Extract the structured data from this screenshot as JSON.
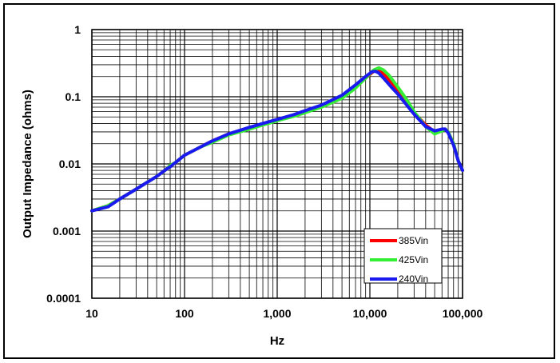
{
  "chart_data": {
    "type": "line",
    "title": "",
    "xlabel": "Hz",
    "ylabel": "Output Impedance (ohms)",
    "x_scale": "log",
    "y_scale": "log",
    "xlim": [
      10,
      100000
    ],
    "ylim": [
      0.0001,
      1
    ],
    "x_ticks": [
      {
        "value": 10,
        "label": "10"
      },
      {
        "value": 100,
        "label": "100"
      },
      {
        "value": 1000,
        "label": "1,000"
      },
      {
        "value": 10000,
        "label": "10,000"
      },
      {
        "value": 100000,
        "label": "100,000"
      }
    ],
    "y_ticks": [
      {
        "value": 1,
        "label": "1"
      },
      {
        "value": 0.1,
        "label": "0.1"
      },
      {
        "value": 0.01,
        "label": "0.01"
      },
      {
        "value": 0.001,
        "label": "0.001"
      },
      {
        "value": 0.0001,
        "label": "0.0001"
      }
    ],
    "grid": true,
    "legend_position": "bottom-right",
    "series": [
      {
        "name": "385Vin",
        "color": "#ff0000",
        "points": [
          [
            10,
            0.002
          ],
          [
            15,
            0.0024
          ],
          [
            20,
            0.003
          ],
          [
            30,
            0.0042
          ],
          [
            50,
            0.0065
          ],
          [
            65,
            0.0085
          ],
          [
            70,
            0.0095
          ],
          [
            80,
            0.0105
          ],
          [
            100,
            0.0135
          ],
          [
            150,
            0.018
          ],
          [
            200,
            0.022
          ],
          [
            300,
            0.028
          ],
          [
            500,
            0.034
          ],
          [
            700,
            0.039
          ],
          [
            1000,
            0.045
          ],
          [
            1500,
            0.053
          ],
          [
            2000,
            0.06
          ],
          [
            3000,
            0.073
          ],
          [
            5000,
            0.1
          ],
          [
            7000,
            0.14
          ],
          [
            9000,
            0.19
          ],
          [
            11000,
            0.24
          ],
          [
            12000,
            0.25
          ],
          [
            13000,
            0.24
          ],
          [
            15000,
            0.2
          ],
          [
            20000,
            0.12
          ],
          [
            25000,
            0.08
          ],
          [
            30000,
            0.058
          ],
          [
            40000,
            0.038
          ],
          [
            50000,
            0.03
          ],
          [
            60000,
            0.032
          ],
          [
            65000,
            0.033
          ],
          [
            70000,
            0.03
          ],
          [
            80000,
            0.02
          ],
          [
            90000,
            0.011
          ],
          [
            100000,
            0.008
          ]
        ]
      },
      {
        "name": "425Vin",
        "color": "#33ee33",
        "points": [
          [
            10,
            0.002
          ],
          [
            15,
            0.0024
          ],
          [
            20,
            0.003
          ],
          [
            30,
            0.0042
          ],
          [
            50,
            0.0065
          ],
          [
            65,
            0.0085
          ],
          [
            70,
            0.0095
          ],
          [
            80,
            0.0105
          ],
          [
            100,
            0.0135
          ],
          [
            150,
            0.018
          ],
          [
            200,
            0.021
          ],
          [
            300,
            0.027
          ],
          [
            500,
            0.033
          ],
          [
            700,
            0.038
          ],
          [
            1000,
            0.044
          ],
          [
            1500,
            0.051
          ],
          [
            2000,
            0.058
          ],
          [
            3000,
            0.07
          ],
          [
            5000,
            0.095
          ],
          [
            7000,
            0.135
          ],
          [
            9000,
            0.19
          ],
          [
            11000,
            0.25
          ],
          [
            12500,
            0.27
          ],
          [
            14000,
            0.25
          ],
          [
            16000,
            0.21
          ],
          [
            20000,
            0.14
          ],
          [
            25000,
            0.09
          ],
          [
            30000,
            0.06
          ],
          [
            40000,
            0.036
          ],
          [
            50000,
            0.028
          ],
          [
            60000,
            0.031
          ],
          [
            65000,
            0.033
          ],
          [
            70000,
            0.03
          ],
          [
            80000,
            0.02
          ],
          [
            90000,
            0.011
          ],
          [
            100000,
            0.008
          ]
        ]
      },
      {
        "name": "240Vin",
        "color": "#1a1aee",
        "points": [
          [
            10,
            0.002
          ],
          [
            15,
            0.0023
          ],
          [
            20,
            0.003
          ],
          [
            30,
            0.0042
          ],
          [
            50,
            0.0065
          ],
          [
            65,
            0.0085
          ],
          [
            70,
            0.009
          ],
          [
            75,
            0.0098
          ],
          [
            80,
            0.0105
          ],
          [
            100,
            0.0135
          ],
          [
            150,
            0.018
          ],
          [
            200,
            0.022
          ],
          [
            300,
            0.028
          ],
          [
            500,
            0.035
          ],
          [
            700,
            0.04
          ],
          [
            1000,
            0.046
          ],
          [
            1500,
            0.054
          ],
          [
            2000,
            0.062
          ],
          [
            3000,
            0.075
          ],
          [
            5000,
            0.105
          ],
          [
            7000,
            0.15
          ],
          [
            9000,
            0.2
          ],
          [
            10500,
            0.235
          ],
          [
            11500,
            0.24
          ],
          [
            12500,
            0.225
          ],
          [
            14000,
            0.19
          ],
          [
            17000,
            0.14
          ],
          [
            20000,
            0.11
          ],
          [
            25000,
            0.075
          ],
          [
            30000,
            0.055
          ],
          [
            40000,
            0.036
          ],
          [
            50000,
            0.031
          ],
          [
            60000,
            0.033
          ],
          [
            65000,
            0.033
          ],
          [
            70000,
            0.029
          ],
          [
            80000,
            0.019
          ],
          [
            90000,
            0.011
          ],
          [
            100000,
            0.008
          ]
        ]
      }
    ]
  }
}
